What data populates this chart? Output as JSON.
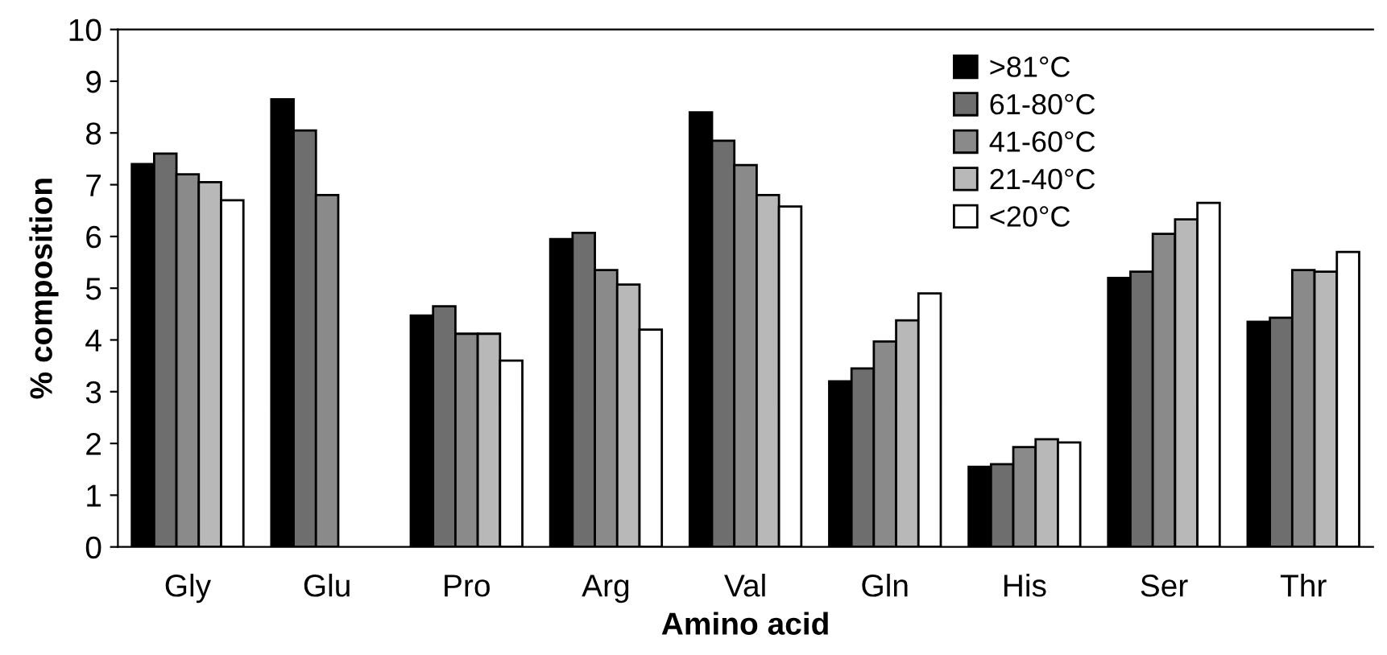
{
  "chart_data": {
    "type": "bar",
    "xlabel": "Amino acid",
    "ylabel": "% composition",
    "categories": [
      "Gly",
      "Glu",
      "Pro",
      "Arg",
      "Val",
      "Gln",
      "His",
      "Ser",
      "Thr"
    ],
    "ylim": [
      0,
      10
    ],
    "yticks": [
      0,
      1,
      2,
      3,
      4,
      5,
      6,
      7,
      8,
      9,
      10
    ],
    "grid": false,
    "legend": "top right",
    "series": [
      {
        "name": ">81°C",
        "color": "#000000",
        "values": [
          7.4,
          8.65,
          4.47,
          5.95,
          8.4,
          3.2,
          1.55,
          5.2,
          4.35
        ]
      },
      {
        "name": "61-80°C",
        "color": "#6e6e6e",
        "values": [
          7.6,
          8.05,
          4.65,
          6.07,
          7.85,
          3.45,
          1.6,
          5.32,
          4.43
        ]
      },
      {
        "name": "41-60°C",
        "color": "#8a8a8a",
        "values": [
          7.2,
          6.8,
          4.12,
          5.35,
          7.38,
          3.97,
          1.93,
          6.05,
          5.35
        ]
      },
      {
        "name": "21-40°C",
        "color": "#b8b8b8",
        "values": [
          7.05,
          null,
          4.12,
          5.07,
          6.8,
          4.38,
          2.08,
          6.33,
          5.32
        ]
      },
      {
        "name": "<20°C",
        "color": "#ffffff",
        "values": [
          6.7,
          null,
          3.6,
          4.2,
          6.58,
          4.9,
          2.02,
          6.65,
          5.7
        ]
      }
    ]
  }
}
